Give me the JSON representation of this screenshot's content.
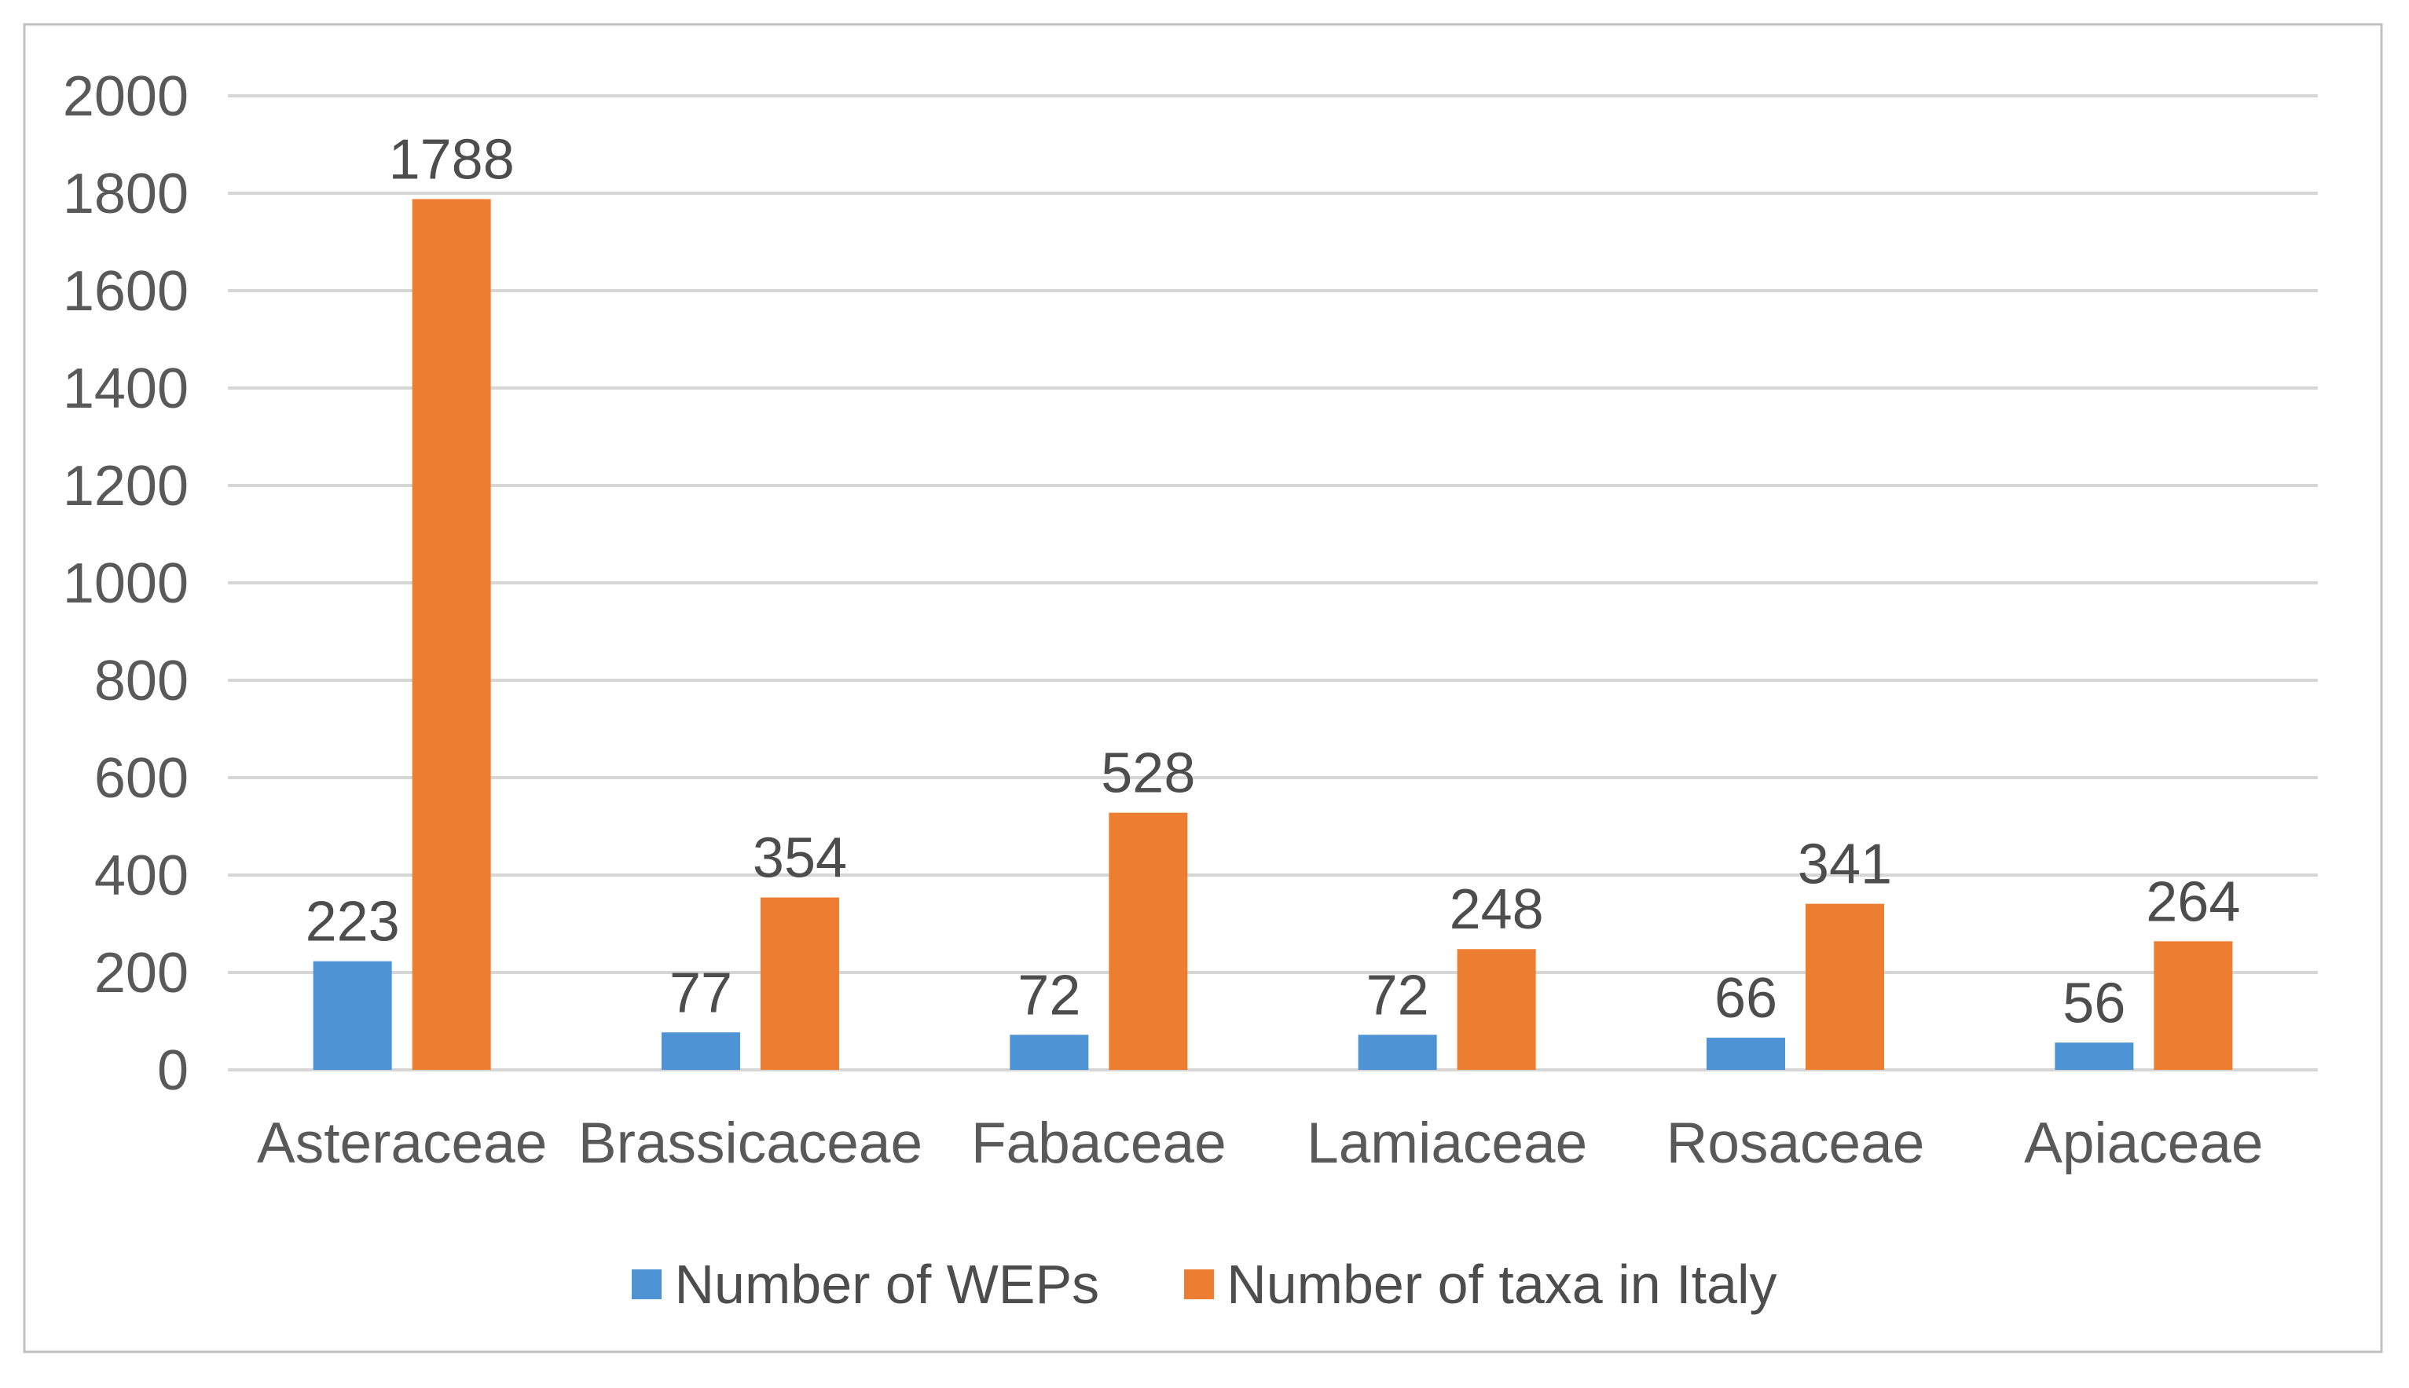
{
  "figure": {
    "background": "#ffffff",
    "border_color": "#c0c0c0"
  },
  "chart_data": {
    "type": "bar",
    "title": "",
    "xlabel": "",
    "ylabel": "",
    "categories": [
      "Asteraceae",
      "Brassicaceae",
      "Fabaceae",
      "Lamiaceae",
      "Rosaceae",
      "Apiaceae"
    ],
    "series": [
      {
        "name": "Number of WEPs",
        "color": "#4e94d4",
        "values": [
          223,
          77,
          72,
          72,
          66,
          56
        ]
      },
      {
        "name": "Number of taxa in Italy",
        "color": "#ed7d31",
        "values": [
          1788,
          354,
          528,
          248,
          341,
          264
        ]
      }
    ],
    "ylim": [
      0,
      2000
    ],
    "yticks": [
      0,
      200,
      400,
      600,
      800,
      1000,
      1200,
      1400,
      1600,
      1800,
      2000
    ],
    "grid": true,
    "gridline_color": "#d6d6d6",
    "tick_label_color": "#595959",
    "label_color": "#4d4d4d",
    "data_labels": true,
    "legend_position": "bottom"
  }
}
